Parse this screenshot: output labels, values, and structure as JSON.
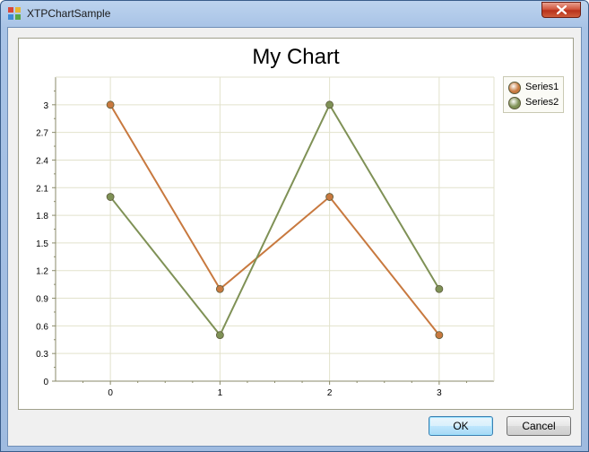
{
  "window": {
    "title": "XTPChartSample"
  },
  "dialog": {
    "ok_label": "OK",
    "cancel_label": "Cancel"
  },
  "colors": {
    "series1": "#c8793f",
    "series2": "#7f9156",
    "grid": "#e2e2cc",
    "axis": "#8a8a6a"
  },
  "chart_data": {
    "type": "line",
    "title": "My Chart",
    "x": [
      0,
      1,
      2,
      3
    ],
    "x_ticks": [
      "0",
      "1",
      "2",
      "3"
    ],
    "y_ticks": [
      "0",
      "0.3",
      "0.6",
      "0.9",
      "1.2",
      "1.5",
      "1.8",
      "2.1",
      "2.4",
      "2.7",
      "3"
    ],
    "xlim": [
      -0.5,
      3.5
    ],
    "ylim": [
      0,
      3.3
    ],
    "grid": true,
    "legend_position": "top-right",
    "series": [
      {
        "name": "Series1",
        "values": [
          3,
          1,
          2,
          0.5
        ]
      },
      {
        "name": "Series2",
        "values": [
          2,
          0.5,
          3,
          1
        ]
      }
    ]
  }
}
